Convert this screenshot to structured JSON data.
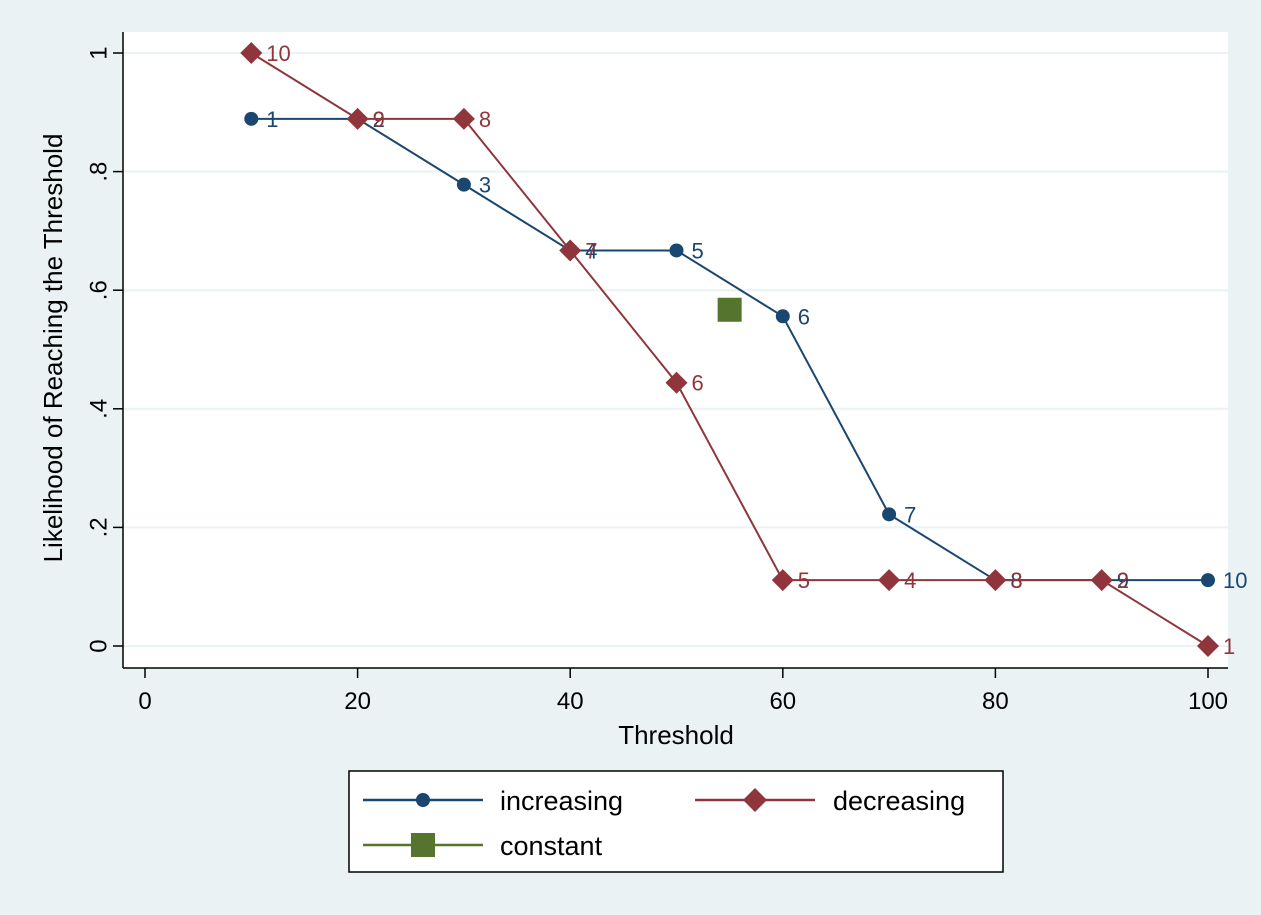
{
  "chart_data": {
    "type": "line",
    "xlabel": "Threshold",
    "ylabel": "Likelihood of Reaching the Threshold",
    "xlim": [
      0,
      100
    ],
    "ylim": [
      0,
      1
    ],
    "x_ticks": [
      0,
      20,
      40,
      60,
      80,
      100
    ],
    "x_tick_labels": [
      "0",
      "20",
      "40",
      "60",
      "80",
      "100"
    ],
    "y_ticks": [
      0,
      0.2,
      0.4,
      0.6,
      0.8,
      1
    ],
    "y_tick_labels": [
      "0",
      ".2",
      ".4",
      ".6",
      ".8",
      "1"
    ],
    "grid": "horizontal",
    "legend_position": "bottom",
    "series": [
      {
        "name": "increasing",
        "marker": "circle",
        "color": "#1a476f",
        "points": [
          {
            "x": 10,
            "y": 0.889,
            "label": "1"
          },
          {
            "x": 20,
            "y": 0.889,
            "label": "2"
          },
          {
            "x": 30,
            "y": 0.778,
            "label": "3"
          },
          {
            "x": 40,
            "y": 0.667,
            "label": "4"
          },
          {
            "x": 50,
            "y": 0.667,
            "label": "5"
          },
          {
            "x": 60,
            "y": 0.556,
            "label": "6"
          },
          {
            "x": 70,
            "y": 0.222,
            "label": "7"
          },
          {
            "x": 80,
            "y": 0.111,
            "label": "8"
          },
          {
            "x": 90,
            "y": 0.111,
            "label": "9"
          },
          {
            "x": 100,
            "y": 0.111,
            "label": "10"
          }
        ]
      },
      {
        "name": "decreasing",
        "marker": "diamond",
        "color": "#90353b",
        "points": [
          {
            "x": 10,
            "y": 1.0,
            "label": "10"
          },
          {
            "x": 20,
            "y": 0.889,
            "label": "9"
          },
          {
            "x": 30,
            "y": 0.889,
            "label": "8"
          },
          {
            "x": 40,
            "y": 0.667,
            "label": "7"
          },
          {
            "x": 50,
            "y": 0.444,
            "label": "6"
          },
          {
            "x": 60,
            "y": 0.111,
            "label": "5"
          },
          {
            "x": 70,
            "y": 0.111,
            "label": "4"
          },
          {
            "x": 80,
            "y": 0.111,
            "label": "3"
          },
          {
            "x": 90,
            "y": 0.111,
            "label": "2"
          },
          {
            "x": 100,
            "y": 0.0,
            "label": "1"
          }
        ]
      },
      {
        "name": "constant",
        "marker": "square",
        "color": "#55752f",
        "points": [
          {
            "x": 55,
            "y": 0.567,
            "label": ""
          }
        ]
      }
    ]
  }
}
